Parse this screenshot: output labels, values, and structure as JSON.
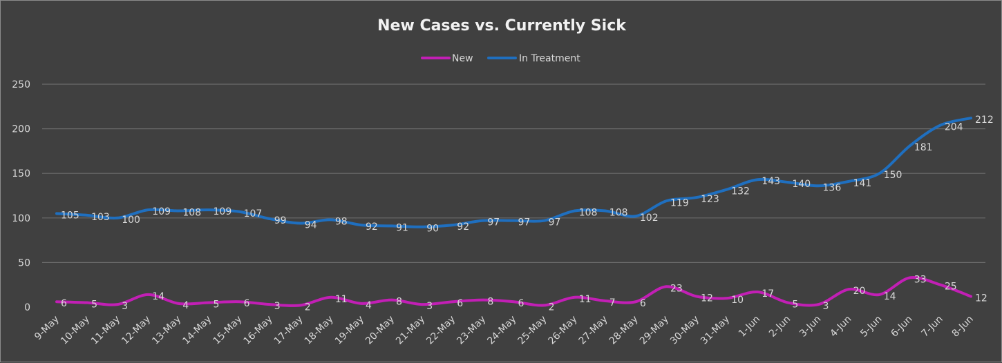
{
  "chart_data": {
    "type": "line",
    "title": "New Cases vs. Currently Sick",
    "xlabel": "",
    "ylabel": "",
    "ylim": [
      0,
      250
    ],
    "yticks": [
      0,
      50,
      100,
      150,
      200,
      250
    ],
    "grid": true,
    "legend_position": "top",
    "categories": [
      "9-May",
      "10-May",
      "11-May",
      "12-May",
      "13-May",
      "14-May",
      "15-May",
      "16-May",
      "17-May",
      "18-May",
      "19-May",
      "20-May",
      "21-May",
      "22-May",
      "23-May",
      "24-May",
      "25-May",
      "26-May",
      "27-May",
      "28-May",
      "29-May",
      "30-May",
      "31-May",
      "1-Jun",
      "2-Jun",
      "3-Jun",
      "4-Jun",
      "5-Jun",
      "6-Jun",
      "7-Jun",
      "8-Jun"
    ],
    "series": [
      {
        "name": "New",
        "color": "#c21fb5",
        "values": [
          6,
          5,
          3,
          14,
          4,
          5,
          6,
          3,
          2,
          11,
          4,
          8,
          3,
          6,
          8,
          6,
          2,
          11,
          7,
          6,
          23,
          12,
          10,
          17,
          5,
          3,
          20,
          14,
          33,
          25,
          12
        ]
      },
      {
        "name": "In Treatment",
        "color": "#1f6fbf",
        "values": [
          105,
          103,
          100,
          109,
          108,
          109,
          107,
          99,
          94,
          98,
          92,
          91,
          90,
          92,
          97,
          97,
          97,
          108,
          108,
          102,
          119,
          123,
          132,
          143,
          140,
          136,
          141,
          150,
          181,
          204,
          212
        ]
      }
    ]
  }
}
